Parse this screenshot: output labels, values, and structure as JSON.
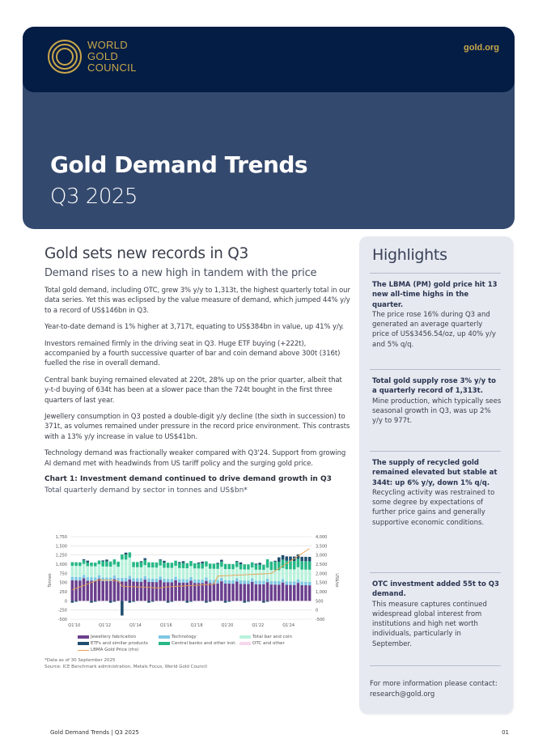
{
  "header": {
    "logo_lines": [
      "WORLD",
      "GOLD",
      "COUNCIL"
    ],
    "site": "gold.org",
    "title": "Gold Demand Trends",
    "subtitle": "Q3 2025",
    "colors": {
      "top_bar": "#031d45",
      "hero": "#34496e",
      "gold": "#c9a74a"
    }
  },
  "main": {
    "heading": "Gold sets new records in Q3",
    "subheading": "Demand rises to a new high in tandem with the price",
    "paragraphs": [
      "Total gold demand, including OTC, grew 3% y/y to 1,313t, the highest quarterly total in our data series. Yet this was eclipsed by the value measure of demand, which jumped 44% y/y to a record of US$146bn in Q3.",
      "Year-to-date demand is 1% higher at 3,717t, equating to US$384bn in value, up 41% y/y.",
      "Investors remained firmly in the driving seat in Q3. Huge ETF buying (+222t), accompanied by a fourth successive quarter of bar and coin demand above 300t (316t) fuelled the rise in overall demand.",
      "Central bank buying remained elevated at 220t, 28% up on the prior quarter, albeit that y-t-d buying of 634t has been at a slower pace than the 724t bought in the first three quarters of last year.",
      "Jewellery consumption in Q3 posted a double-digit y/y decline (the sixth in succession) to 371t, as volumes remained under pressure in the record price environment. This contrasts with a 13% y/y increase in value to US$41bn.",
      "Technology demand was fractionally weaker compared with Q3'24. Support from growing AI demand met with headwinds from US tariff policy and the surging gold price."
    ],
    "chart_title": "Chart 1: Investment demand continued to drive demand growth in Q3",
    "chart_subtitle": "Total quarterly demand by sector in tonnes and US$bn*",
    "footnote": "*Data as of 30 September 2025",
    "source": "Source: ICE Benchmark administration, Metals Focus, World Gold Council"
  },
  "chart_data": {
    "type": "bar",
    "title": "Chart 1: Investment demand continued to drive demand growth in Q3",
    "subtitle": "Total quarterly demand by sector in tonnes and US$bn*",
    "xlabel": "",
    "ylabel": "Tonnes",
    "y2label": "US$/oz",
    "ylim": [
      -500,
      1750
    ],
    "y2lim": [
      -500,
      4000
    ],
    "y_ticks": [
      "1,750",
      "1,500",
      "1,250",
      "1,000",
      "750",
      "500",
      "250",
      "0",
      "-250",
      "-500"
    ],
    "y2_ticks": [
      "4,000",
      "3,500",
      "3,000",
      "2,500",
      "2,000",
      "1,500",
      "1,000",
      "500",
      "0",
      "-500"
    ],
    "x_tick_labels": [
      "Q1'10",
      "Q1'12",
      "Q1'14",
      "Q1'16",
      "Q1'18",
      "Q1'20",
      "Q1'22",
      "Q1'24"
    ],
    "stacked": true,
    "legend": [
      {
        "name": "Jewellery fabrication",
        "color": "#6b3f8e"
      },
      {
        "name": "Technology",
        "color": "#7ec8e3"
      },
      {
        "name": "Total bar and coin",
        "color": "#b9f2dc"
      },
      {
        "name": "ETFs and similar products",
        "color": "#1f4e6e"
      },
      {
        "name": "Central banks and other inst.",
        "color": "#26b887"
      },
      {
        "name": "OTC and other",
        "color": "#f7d8ec"
      },
      {
        "name": "LBMA Gold Price (rhs)",
        "color": "#e8a050",
        "type": "line"
      }
    ],
    "series_summary": {
      "jewellery_approx_t": "~450-600 per quarter, declining to ~370 by Q3'25",
      "technology_approx_t": "~80-120 per quarter",
      "total_demand_peak_t": "~1,600 (Q2'13 area) and ~1,313 in Q3'25",
      "etf_outflow_low_t": "~ -400 (Q2'13)",
      "lbma_price_start_usd_oz": 1100,
      "lbma_price_end_usd_oz": 3457
    },
    "legend_position": "bottom",
    "grid": true
  },
  "highlights": {
    "title": "Highlights",
    "items": [
      {
        "bold": "The LBMA (PM) gold price hit 13 new all-time highs in the quarter.",
        "text": "The price rose 16% during Q3 and generated an average quarterly price of US$3456.54/oz, up 40% y/y and 5% q/q."
      },
      {
        "bold": "Total gold supply rose 3% y/y to a quarterly record of 1,313t.",
        "text": "Mine production, which typically sees seasonal growth in Q3, was up 2% y/y to 977t."
      },
      {
        "bold": "The supply of recycled gold remained elevated but stable at 344t: up 6% y/y, down 1% q/q.",
        "text": "Recycling activity was restrained to some degree by expectations of further price gains and generally supportive economic conditions."
      },
      {
        "bold": "OTC investment added 55t to Q3 demand.",
        "text": "This measure captures continued widespread global interest from institutions and high net worth individuals, particularly in September."
      }
    ],
    "contact": "For more information please contact: research@gold.org"
  },
  "footer": {
    "left": "Gold Demand Trends | Q3 2025",
    "page": "01"
  }
}
